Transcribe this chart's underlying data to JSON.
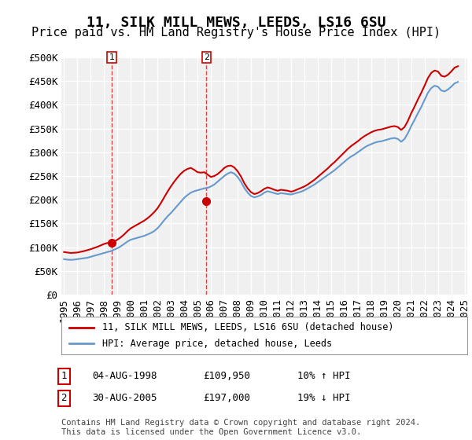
{
  "title": "11, SILK MILL MEWS, LEEDS, LS16 6SU",
  "subtitle": "Price paid vs. HM Land Registry's House Price Index (HPI)",
  "xlabel": "",
  "ylabel": "",
  "ylim": [
    0,
    500000
  ],
  "yticks": [
    0,
    50000,
    100000,
    150000,
    200000,
    250000,
    300000,
    350000,
    400000,
    450000,
    500000
  ],
  "ytick_labels": [
    "£0",
    "£50K",
    "£100K",
    "£150K",
    "£200K",
    "£250K",
    "£300K",
    "£350K",
    "£400K",
    "£450K",
    "£500K"
  ],
  "background_color": "#ffffff",
  "plot_bg_color": "#f0f0f0",
  "grid_color": "#ffffff",
  "red_color": "#cc0000",
  "blue_color": "#6699cc",
  "marker1_date": 1998.58,
  "marker1_value": 109950,
  "marker1_label": "1",
  "marker2_date": 2005.66,
  "marker2_value": 197000,
  "marker2_label": "2",
  "legend_red": "11, SILK MILL MEWS, LEEDS, LS16 6SU (detached house)",
  "legend_blue": "HPI: Average price, detached house, Leeds",
  "annotation1": "1    04-AUG-1998           £109,950         10% ↑ HPI",
  "annotation2": "2    30-AUG-2005           £197,000         19% ↓ HPI",
  "footnote": "Contains HM Land Registry data © Crown copyright and database right 2024.\nThis data is licensed under the Open Government Licence v3.0.",
  "title_fontsize": 13,
  "subtitle_fontsize": 11,
  "tick_fontsize": 9,
  "hpi_data": {
    "years": [
      1995.0,
      1995.25,
      1995.5,
      1995.75,
      1996.0,
      1996.25,
      1996.5,
      1996.75,
      1997.0,
      1997.25,
      1997.5,
      1997.75,
      1998.0,
      1998.25,
      1998.5,
      1998.75,
      1999.0,
      1999.25,
      1999.5,
      1999.75,
      2000.0,
      2000.25,
      2000.5,
      2000.75,
      2001.0,
      2001.25,
      2001.5,
      2001.75,
      2002.0,
      2002.25,
      2002.5,
      2002.75,
      2003.0,
      2003.25,
      2003.5,
      2003.75,
      2004.0,
      2004.25,
      2004.5,
      2004.75,
      2005.0,
      2005.25,
      2005.5,
      2005.75,
      2006.0,
      2006.25,
      2006.5,
      2006.75,
      2007.0,
      2007.25,
      2007.5,
      2007.75,
      2008.0,
      2008.25,
      2008.5,
      2008.75,
      2009.0,
      2009.25,
      2009.5,
      2009.75,
      2010.0,
      2010.25,
      2010.5,
      2010.75,
      2011.0,
      2011.25,
      2011.5,
      2011.75,
      2012.0,
      2012.25,
      2012.5,
      2012.75,
      2013.0,
      2013.25,
      2013.5,
      2013.75,
      2014.0,
      2014.25,
      2014.5,
      2014.75,
      2015.0,
      2015.25,
      2015.5,
      2015.75,
      2016.0,
      2016.25,
      2016.5,
      2016.75,
      2017.0,
      2017.25,
      2017.5,
      2017.75,
      2018.0,
      2018.25,
      2018.5,
      2018.75,
      2019.0,
      2019.25,
      2019.5,
      2019.75,
      2020.0,
      2020.25,
      2020.5,
      2020.75,
      2021.0,
      2021.25,
      2021.5,
      2021.75,
      2022.0,
      2022.25,
      2022.5,
      2022.75,
      2023.0,
      2023.25,
      2023.5,
      2023.75,
      2024.0,
      2024.25,
      2024.5
    ],
    "values": [
      75000,
      74000,
      73500,
      74000,
      75000,
      76000,
      77000,
      78000,
      80000,
      82000,
      84000,
      86000,
      88000,
      90000,
      92000,
      95000,
      98000,
      102000,
      107000,
      112000,
      116000,
      118000,
      120000,
      122000,
      124000,
      127000,
      130000,
      134000,
      140000,
      148000,
      157000,
      165000,
      172000,
      180000,
      188000,
      196000,
      204000,
      210000,
      215000,
      218000,
      220000,
      222000,
      224000,
      225000,
      228000,
      232000,
      238000,
      244000,
      250000,
      255000,
      258000,
      255000,
      248000,
      238000,
      225000,
      215000,
      208000,
      205000,
      207000,
      210000,
      215000,
      218000,
      216000,
      214000,
      212000,
      214000,
      213000,
      212000,
      211000,
      213000,
      215000,
      217000,
      220000,
      224000,
      228000,
      232000,
      237000,
      242000,
      247000,
      252000,
      257000,
      262000,
      268000,
      274000,
      280000,
      286000,
      291000,
      295000,
      300000,
      305000,
      310000,
      314000,
      317000,
      320000,
      322000,
      323000,
      325000,
      327000,
      329000,
      330000,
      328000,
      322000,
      328000,
      340000,
      355000,
      368000,
      382000,
      395000,
      410000,
      425000,
      435000,
      440000,
      438000,
      430000,
      428000,
      432000,
      438000,
      445000,
      448000
    ]
  },
  "red_data": {
    "years": [
      1995.0,
      1995.25,
      1995.5,
      1995.75,
      1996.0,
      1996.25,
      1996.5,
      1996.75,
      1997.0,
      1997.25,
      1997.5,
      1997.75,
      1998.0,
      1998.25,
      1998.5,
      1998.75,
      1999.0,
      1999.25,
      1999.5,
      1999.75,
      2000.0,
      2000.25,
      2000.5,
      2000.75,
      2001.0,
      2001.25,
      2001.5,
      2001.75,
      2002.0,
      2002.25,
      2002.5,
      2002.75,
      2003.0,
      2003.25,
      2003.5,
      2003.75,
      2004.0,
      2004.25,
      2004.5,
      2004.75,
      2005.0,
      2005.25,
      2005.5,
      2005.75,
      2006.0,
      2006.25,
      2006.5,
      2006.75,
      2007.0,
      2007.25,
      2007.5,
      2007.75,
      2008.0,
      2008.25,
      2008.5,
      2008.75,
      2009.0,
      2009.25,
      2009.5,
      2009.75,
      2010.0,
      2010.25,
      2010.5,
      2010.75,
      2011.0,
      2011.25,
      2011.5,
      2011.75,
      2012.0,
      2012.25,
      2012.5,
      2012.75,
      2013.0,
      2013.25,
      2013.5,
      2013.75,
      2014.0,
      2014.25,
      2014.5,
      2014.75,
      2015.0,
      2015.25,
      2015.5,
      2015.75,
      2016.0,
      2016.25,
      2016.5,
      2016.75,
      2017.0,
      2017.25,
      2017.5,
      2017.75,
      2018.0,
      2018.25,
      2018.5,
      2018.75,
      2019.0,
      2019.25,
      2019.5,
      2019.75,
      2020.0,
      2020.25,
      2020.5,
      2020.75,
      2021.0,
      2021.25,
      2021.5,
      2021.75,
      2022.0,
      2022.25,
      2022.5,
      2022.75,
      2023.0,
      2023.25,
      2023.5,
      2023.75,
      2024.0,
      2024.25,
      2024.5
    ],
    "values": [
      90000,
      89000,
      88000,
      88500,
      89000,
      90500,
      92000,
      94000,
      96000,
      98500,
      101000,
      104000,
      107000,
      109000,
      110500,
      112000,
      116000,
      121000,
      127000,
      134000,
      140000,
      144000,
      148000,
      152000,
      156000,
      161000,
      167000,
      174000,
      182000,
      193000,
      205000,
      217000,
      228000,
      238000,
      247000,
      255000,
      261000,
      265000,
      267000,
      263000,
      258000,
      257000,
      258000,
      253000,
      248000,
      250000,
      254000,
      260000,
      267000,
      271000,
      272000,
      268000,
      260000,
      249000,
      235000,
      224000,
      216000,
      212000,
      214000,
      218000,
      223000,
      226000,
      224000,
      221000,
      219000,
      221000,
      220000,
      219000,
      217000,
      219000,
      222000,
      225000,
      228000,
      232000,
      237000,
      242000,
      248000,
      254000,
      260000,
      266000,
      273000,
      279000,
      286000,
      293000,
      300000,
      307000,
      313000,
      318000,
      323000,
      329000,
      334000,
      338000,
      342000,
      345000,
      347000,
      348000,
      350000,
      352000,
      354000,
      355000,
      353000,
      347000,
      353000,
      366000,
      382000,
      396000,
      411000,
      425000,
      440000,
      456000,
      467000,
      472000,
      470000,
      461000,
      459000,
      463000,
      470000,
      478000,
      481000
    ]
  },
  "xtick_years": [
    1995,
    1996,
    1997,
    1998,
    1999,
    2000,
    2001,
    2002,
    2003,
    2004,
    2005,
    2006,
    2007,
    2008,
    2009,
    2010,
    2011,
    2012,
    2013,
    2014,
    2015,
    2016,
    2017,
    2018,
    2019,
    2020,
    2021,
    2022,
    2023,
    2024,
    2025
  ]
}
